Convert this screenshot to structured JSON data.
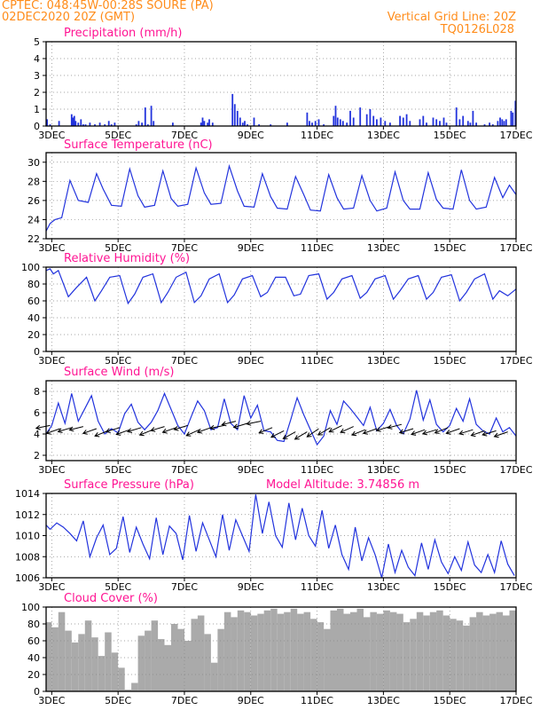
{
  "header": {
    "line1_left": "CPTEC:  048:45W-00:28S  SOURE (PA)",
    "line2_left": "02DEC2020 20Z (GMT)",
    "line1_right": "Vertical Grid Line: 20Z",
    "line2_right": "TQ0126L028"
  },
  "colors": {
    "header": "#ff8c1a",
    "title": "#ff1493",
    "series": "#2233dd",
    "cloud": "#aaaaaa",
    "grid": "#888888"
  },
  "x_axis": {
    "range_days": [
      2.83,
      17.0
    ],
    "tick_days": [
      3,
      5,
      7,
      9,
      11,
      13,
      15,
      17
    ],
    "tick_labels": [
      "3DEC",
      "5DEC",
      "7DEC",
      "9DEC",
      "11DEC",
      "13DEC",
      "15DEC",
      "17DEC"
    ]
  },
  "chart_data": [
    {
      "type": "bar",
      "title": "Precipitation (mm/h)",
      "ylim": [
        0,
        5
      ],
      "yticks": [
        0,
        1,
        2,
        3,
        4,
        5
      ],
      "x": [
        2.86,
        2.95,
        3.22,
        3.6,
        3.64,
        3.68,
        3.72,
        3.8,
        3.88,
        3.95,
        4.02,
        4.15,
        4.3,
        4.45,
        4.6,
        4.72,
        4.8,
        4.9,
        5.55,
        5.62,
        5.72,
        5.82,
        5.9,
        6.0,
        6.07,
        6.65,
        7.5,
        7.55,
        7.6,
        7.7,
        7.75,
        7.85,
        8.45,
        8.52,
        8.6,
        8.68,
        8.76,
        8.82,
        8.9,
        9.1,
        9.25,
        9.6,
        10.1,
        10.7,
        10.77,
        10.85,
        10.95,
        11.05,
        11.2,
        11.5,
        11.56,
        11.62,
        11.7,
        11.78,
        11.9,
        12.0,
        12.1,
        12.3,
        12.5,
        12.6,
        12.7,
        12.8,
        12.92,
        13.05,
        13.2,
        13.5,
        13.6,
        13.7,
        13.8,
        14.1,
        14.2,
        14.3,
        14.5,
        14.6,
        14.7,
        14.82,
        14.9,
        15.2,
        15.3,
        15.4,
        15.55,
        15.62,
        15.7,
        15.8,
        16.05,
        16.2,
        16.3,
        16.45,
        16.52,
        16.58,
        16.64,
        16.7,
        16.85,
        16.9,
        16.98
      ],
      "values": [
        0.4,
        0.1,
        0.3,
        0.7,
        0.5,
        0.6,
        0.3,
        0.2,
        0.4,
        0.1,
        0.1,
        0.2,
        0.1,
        0.2,
        0.1,
        0.3,
        0.1,
        0.2,
        0.1,
        0.3,
        0.2,
        1.1,
        0.1,
        1.2,
        0.3,
        0.2,
        0.2,
        0.5,
        0.3,
        0.2,
        0.4,
        0.2,
        1.9,
        1.3,
        0.9,
        0.5,
        0.2,
        0.3,
        0.1,
        0.5,
        0.1,
        0.1,
        0.2,
        0.8,
        0.3,
        0.2,
        0.3,
        0.4,
        0.1,
        0.6,
        1.2,
        0.5,
        0.4,
        0.3,
        0.2,
        0.9,
        0.5,
        1.1,
        0.7,
        1.0,
        0.6,
        0.4,
        0.5,
        0.3,
        0.2,
        0.6,
        0.5,
        0.7,
        0.3,
        0.4,
        0.6,
        0.2,
        0.5,
        0.4,
        0.3,
        0.5,
        0.2,
        1.1,
        0.4,
        0.6,
        0.3,
        0.2,
        0.9,
        0.2,
        0.1,
        0.2,
        0.1,
        0.3,
        0.5,
        0.4,
        0.3,
        0.4,
        0.9,
        0.8,
        1.5
      ]
    },
    {
      "type": "line",
      "title": "Surface Temperature (nC)",
      "ylim": [
        22,
        31
      ],
      "yticks": [
        22,
        24,
        26,
        28,
        30
      ],
      "x": [
        2.83,
        2.95,
        3.1,
        3.3,
        3.55,
        3.8,
        4.1,
        4.35,
        4.55,
        4.8,
        5.1,
        5.35,
        5.6,
        5.8,
        6.1,
        6.35,
        6.6,
        6.8,
        7.1,
        7.35,
        7.6,
        7.8,
        8.1,
        8.35,
        8.6,
        8.8,
        9.1,
        9.35,
        9.6,
        9.8,
        10.1,
        10.35,
        10.6,
        10.8,
        11.1,
        11.35,
        11.6,
        11.8,
        12.1,
        12.35,
        12.6,
        12.8,
        13.1,
        13.35,
        13.6,
        13.8,
        14.1,
        14.35,
        14.6,
        14.8,
        15.1,
        15.35,
        15.6,
        15.8,
        16.1,
        16.35,
        16.6,
        16.8,
        17.0
      ],
      "values": [
        22.8,
        23.6,
        24.0,
        24.2,
        28.1,
        26.0,
        25.8,
        28.8,
        27.2,
        25.5,
        25.4,
        29.3,
        26.5,
        25.3,
        25.5,
        29.1,
        26.2,
        25.4,
        25.6,
        29.4,
        26.8,
        25.6,
        25.7,
        29.6,
        27.0,
        25.4,
        25.3,
        28.8,
        26.4,
        25.2,
        25.1,
        28.5,
        26.6,
        25.0,
        24.9,
        28.7,
        26.3,
        25.1,
        25.2,
        28.6,
        26.0,
        24.9,
        25.2,
        29.0,
        26.0,
        25.1,
        25.1,
        28.9,
        26.1,
        25.2,
        25.1,
        29.2,
        26.0,
        25.1,
        25.3,
        28.4,
        26.3,
        27.6,
        26.6
      ]
    },
    {
      "type": "line",
      "title": "Relative Humidity (%)",
      "ylim": [
        0,
        100
      ],
      "yticks": [
        0,
        20,
        40,
        60,
        80,
        100
      ],
      "x": [
        2.83,
        2.95,
        3.05,
        3.2,
        3.5,
        3.75,
        4.05,
        4.3,
        4.5,
        4.75,
        5.05,
        5.3,
        5.5,
        5.75,
        6.05,
        6.3,
        6.5,
        6.75,
        7.05,
        7.3,
        7.5,
        7.75,
        8.05,
        8.3,
        8.5,
        8.75,
        9.05,
        9.3,
        9.5,
        9.75,
        10.05,
        10.3,
        10.5,
        10.75,
        11.05,
        11.3,
        11.5,
        11.75,
        12.05,
        12.3,
        12.5,
        12.75,
        13.05,
        13.3,
        13.5,
        13.75,
        14.05,
        14.3,
        14.5,
        14.75,
        15.05,
        15.3,
        15.5,
        15.75,
        16.05,
        16.3,
        16.5,
        16.75,
        17.0
      ],
      "values": [
        96,
        98,
        92,
        96,
        65,
        76,
        88,
        60,
        72,
        88,
        90,
        57,
        68,
        88,
        92,
        58,
        70,
        88,
        94,
        58,
        66,
        86,
        92,
        58,
        67,
        86,
        90,
        65,
        70,
        88,
        88,
        66,
        68,
        90,
        92,
        62,
        70,
        86,
        90,
        63,
        70,
        86,
        90,
        62,
        72,
        86,
        90,
        62,
        70,
        88,
        91,
        60,
        70,
        86,
        92,
        62,
        72,
        66,
        74
      ]
    },
    {
      "type": "line",
      "title": "Surface Wind (m/s)",
      "ylim": [
        1.5,
        9
      ],
      "yticks": [
        2,
        4,
        6,
        8
      ],
      "x": [
        2.83,
        3.0,
        3.2,
        3.4,
        3.6,
        3.8,
        4.0,
        4.2,
        4.4,
        4.6,
        4.8,
        5.0,
        5.2,
        5.4,
        5.6,
        5.8,
        6.0,
        6.2,
        6.4,
        6.6,
        6.8,
        7.0,
        7.2,
        7.4,
        7.6,
        7.8,
        8.0,
        8.2,
        8.4,
        8.6,
        8.8,
        9.0,
        9.2,
        9.4,
        9.6,
        9.8,
        10.0,
        10.2,
        10.4,
        10.6,
        10.8,
        11.0,
        11.2,
        11.4,
        11.6,
        11.8,
        12.0,
        12.2,
        12.4,
        12.6,
        12.8,
        13.0,
        13.2,
        13.4,
        13.6,
        13.8,
        14.0,
        14.2,
        14.4,
        14.6,
        14.8,
        15.0,
        15.2,
        15.4,
        15.6,
        15.8,
        16.0,
        16.2,
        16.4,
        16.6,
        16.8,
        17.0
      ],
      "values": [
        4.0,
        4.8,
        6.9,
        5.0,
        7.8,
        5.2,
        6.4,
        7.6,
        5.2,
        4.0,
        4.5,
        4.1,
        5.9,
        6.8,
        5.1,
        4.4,
        5.1,
        6.2,
        7.8,
        6.3,
        4.8,
        4.0,
        5.6,
        7.1,
        6.2,
        4.4,
        4.6,
        7.3,
        5.0,
        4.4,
        7.6,
        5.5,
        6.7,
        4.3,
        4.2,
        3.4,
        3.3,
        5.3,
        7.4,
        5.8,
        4.4,
        3.0,
        3.8,
        6.2,
        4.9,
        7.1,
        6.4,
        5.6,
        4.8,
        6.5,
        4.3,
        5.0,
        6.3,
        4.8,
        4.0,
        5.4,
        8.1,
        5.3,
        7.2,
        4.9,
        4.2,
        4.8,
        6.4,
        5.2,
        7.3,
        4.9,
        4.3,
        4.0,
        5.5,
        4.2,
        4.6,
        3.8
      ],
      "arrows": {
        "x": [
          2.95,
          3.25,
          3.6,
          3.95,
          4.35,
          4.7,
          5.05,
          5.35,
          5.7,
          6.05,
          6.4,
          6.75,
          7.1,
          7.45,
          7.8,
          8.2,
          8.55,
          8.9,
          9.3,
          9.65,
          10.0,
          10.35,
          10.7,
          11.05,
          11.4,
          11.75,
          12.1,
          12.45,
          12.8,
          13.2,
          13.55,
          13.9,
          14.25,
          14.6,
          14.95,
          15.3,
          15.7,
          16.05,
          16.4,
          16.75
        ],
        "y": [
          4.8,
          4.5,
          4.6,
          4.7,
          4.5,
          4.3,
          4.6,
          4.4,
          4.6,
          4.4,
          4.7,
          4.6,
          4.8,
          4.4,
          4.6,
          4.8,
          5.2,
          5.0,
          5.2,
          4.6,
          4.3,
          4.2,
          4.2,
          4.5,
          4.6,
          4.8,
          4.7,
          4.4,
          4.5,
          4.7,
          4.9,
          4.5,
          4.4,
          4.4,
          4.6,
          4.5,
          4.4,
          4.3,
          4.3,
          4.2
        ],
        "u": [
          -1,
          -1,
          -1,
          -1,
          -1,
          -1,
          -1,
          -1,
          -1,
          -1,
          -1,
          -1,
          -1,
          -1,
          -1,
          -1,
          -1,
          -1,
          -1,
          -1,
          -1,
          -1,
          -1,
          -1,
          -1,
          -1,
          -1,
          -1,
          -1,
          -1,
          -1,
          -1,
          -1,
          -1,
          -1,
          -1,
          -1,
          -1,
          -1,
          -1
        ],
        "v": [
          -0.2,
          -0.35,
          -0.3,
          -0.25,
          -0.35,
          -0.4,
          -0.3,
          -0.35,
          -0.3,
          -0.4,
          -0.3,
          -0.35,
          -0.3,
          -0.45,
          -0.35,
          -0.2,
          -0.25,
          -0.3,
          -0.2,
          -0.4,
          -0.5,
          -0.55,
          -0.6,
          -0.7,
          -0.6,
          -0.5,
          -0.45,
          -0.4,
          -0.35,
          -0.3,
          -0.25,
          -0.3,
          -0.35,
          -0.3,
          -0.4,
          -0.35,
          -0.3,
          -0.35,
          -0.3,
          -0.35
        ]
      }
    },
    {
      "type": "line",
      "title": "Surface Pressure (hPa)",
      "subtitle": "Model Altitude: 3.74856 m",
      "ylim": [
        1006,
        1014
      ],
      "yticks": [
        1006,
        1008,
        1010,
        1012,
        1014
      ],
      "x": [
        2.83,
        2.95,
        3.15,
        3.35,
        3.55,
        3.75,
        3.95,
        4.15,
        4.35,
        4.55,
        4.75,
        4.95,
        5.15,
        5.35,
        5.55,
        5.75,
        5.95,
        6.15,
        6.35,
        6.55,
        6.75,
        6.95,
        7.15,
        7.35,
        7.55,
        7.75,
        7.95,
        8.15,
        8.35,
        8.55,
        8.75,
        8.95,
        9.15,
        9.35,
        9.55,
        9.75,
        9.95,
        10.15,
        10.35,
        10.55,
        10.75,
        10.95,
        11.15,
        11.35,
        11.55,
        11.75,
        11.95,
        12.15,
        12.35,
        12.55,
        12.75,
        12.95,
        13.15,
        13.35,
        13.55,
        13.75,
        13.95,
        14.15,
        14.35,
        14.55,
        14.75,
        14.95,
        15.15,
        15.35,
        15.55,
        15.75,
        15.95,
        16.15,
        16.35,
        16.55,
        16.75,
        16.95
      ],
      "values": [
        1011.0,
        1010.6,
        1011.2,
        1010.8,
        1010.2,
        1009.5,
        1011.4,
        1008.0,
        1009.8,
        1011.0,
        1008.2,
        1008.8,
        1011.8,
        1008.4,
        1010.8,
        1009.2,
        1007.8,
        1011.7,
        1008.2,
        1010.9,
        1010.2,
        1007.7,
        1011.9,
        1008.5,
        1011.2,
        1009.6,
        1008.0,
        1012.0,
        1008.6,
        1011.5,
        1010.0,
        1008.5,
        1013.9,
        1010.2,
        1013.2,
        1010.0,
        1008.9,
        1013.1,
        1009.6,
        1012.6,
        1010.0,
        1009.0,
        1012.4,
        1008.8,
        1011.0,
        1008.2,
        1006.8,
        1010.8,
        1007.6,
        1009.8,
        1008.2,
        1006.0,
        1009.2,
        1006.5,
        1008.6,
        1007.0,
        1006.2,
        1009.3,
        1006.8,
        1009.6,
        1007.5,
        1006.4,
        1008.0,
        1006.7,
        1009.4,
        1007.2,
        1006.5,
        1008.2,
        1006.5,
        1009.5,
        1007.3,
        1006.2
      ]
    },
    {
      "type": "bar",
      "title": "Cloud Cover (%)",
      "ylim": [
        0,
        100
      ],
      "yticks": [
        0,
        20,
        40,
        60,
        80,
        100
      ],
      "x": [
        2.83,
        3.0,
        3.2,
        3.4,
        3.6,
        3.8,
        4.0,
        4.2,
        4.4,
        4.6,
        4.8,
        5.0,
        5.2,
        5.4,
        5.6,
        5.8,
        6.0,
        6.2,
        6.4,
        6.6,
        6.8,
        7.0,
        7.2,
        7.4,
        7.6,
        7.8,
        8.0,
        8.2,
        8.4,
        8.6,
        8.8,
        9.0,
        9.2,
        9.4,
        9.6,
        9.8,
        10.0,
        10.2,
        10.4,
        10.6,
        10.8,
        11.0,
        11.2,
        11.4,
        11.6,
        11.8,
        12.0,
        12.2,
        12.4,
        12.6,
        12.8,
        13.0,
        13.2,
        13.4,
        13.6,
        13.8,
        14.0,
        14.2,
        14.4,
        14.6,
        14.8,
        15.0,
        15.2,
        15.4,
        15.6,
        15.8,
        16.0,
        16.2,
        16.4,
        16.6,
        16.8
      ],
      "values": [
        82,
        76,
        94,
        72,
        58,
        68,
        84,
        64,
        42,
        70,
        46,
        28,
        2,
        10,
        66,
        72,
        84,
        62,
        55,
        80,
        74,
        60,
        86,
        90,
        68,
        34,
        74,
        94,
        88,
        96,
        94,
        90,
        92,
        96,
        98,
        92,
        94,
        98,
        92,
        94,
        86,
        82,
        74,
        96,
        98,
        92,
        94,
        98,
        88,
        94,
        92,
        96,
        94,
        92,
        82,
        86,
        94,
        90,
        94,
        96,
        90,
        86,
        84,
        78,
        88,
        94,
        90,
        92,
        94,
        90,
        96
      ]
    }
  ]
}
